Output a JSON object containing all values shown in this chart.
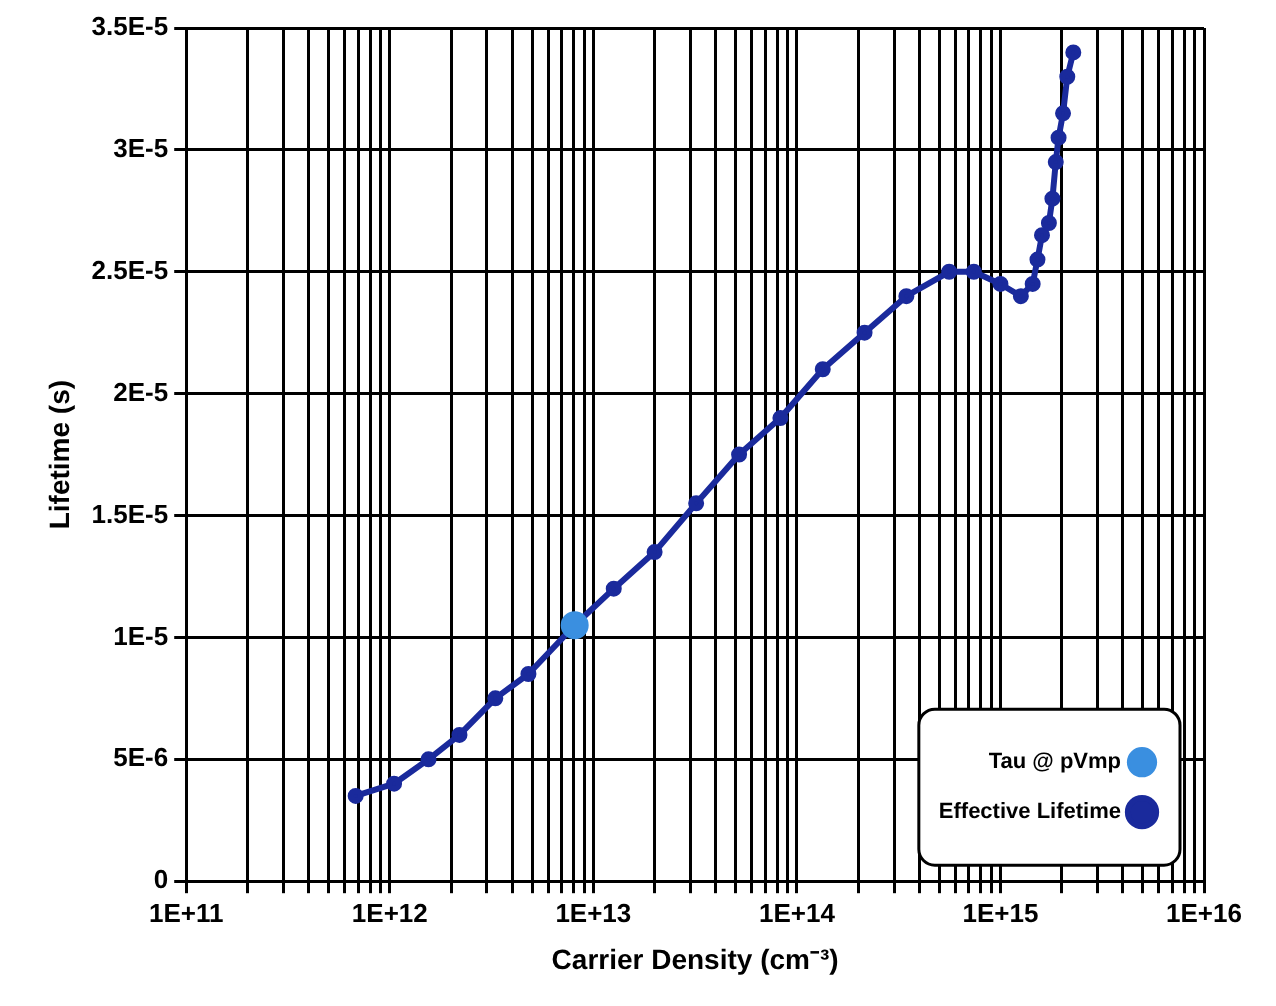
{
  "chart_data": {
    "type": "line",
    "xlabel": "Carrier Density (cm⁻³)",
    "ylabel": "Lifetime (s)",
    "log": "x",
    "grid": true,
    "legend": "bottom right",
    "marker": "circle",
    "xlim": [
      100000000000.0,
      1e+16
    ],
    "ylim": [
      0,
      3.5e-05
    ],
    "xticks": [
      {
        "value": 100000000000.0,
        "label": "1E+11"
      },
      {
        "value": 200000000000.0,
        "label": null
      },
      {
        "value": 300000000000.0,
        "label": null
      },
      {
        "value": 400000000000.0,
        "label": null
      },
      {
        "value": 500000000000.0,
        "label": null
      },
      {
        "value": 600000000000.0,
        "label": null
      },
      {
        "value": 700000000000.0,
        "label": null
      },
      {
        "value": 800000000000.0,
        "label": null
      },
      {
        "value": 900000000000.0,
        "label": null
      },
      {
        "value": 1000000000000.0,
        "label": "1E+12"
      },
      {
        "value": 2000000000000.0,
        "label": null
      },
      {
        "value": 3000000000000.0,
        "label": null
      },
      {
        "value": 4000000000000.0,
        "label": null
      },
      {
        "value": 5000000000000.0,
        "label": null
      },
      {
        "value": 6000000000000.0,
        "label": null
      },
      {
        "value": 7000000000000.0,
        "label": null
      },
      {
        "value": 8000000000000.0,
        "label": null
      },
      {
        "value": 9000000000000.0,
        "label": null
      },
      {
        "value": 10000000000000.0,
        "label": "1E+13"
      },
      {
        "value": 20000000000000.0,
        "label": null
      },
      {
        "value": 30000000000000.0,
        "label": null
      },
      {
        "value": 40000000000000.0,
        "label": null
      },
      {
        "value": 50000000000000.0,
        "label": null
      },
      {
        "value": 60000000000000.0,
        "label": null
      },
      {
        "value": 70000000000000.0,
        "label": null
      },
      {
        "value": 80000000000000.0,
        "label": null
      },
      {
        "value": 90000000000000.0,
        "label": null
      },
      {
        "value": 100000000000000.0,
        "label": "1E+14"
      },
      {
        "value": 200000000000000.0,
        "label": null
      },
      {
        "value": 300000000000000.0,
        "label": null
      },
      {
        "value": 400000000000000.0,
        "label": null
      },
      {
        "value": 500000000000000.0,
        "label": null
      },
      {
        "value": 600000000000000.0,
        "label": null
      },
      {
        "value": 700000000000000.0,
        "label": null
      },
      {
        "value": 800000000000000.0,
        "label": null
      },
      {
        "value": 900000000000000.0,
        "label": null
      },
      {
        "value": 1000000000000000.0,
        "label": "1E+15"
      },
      {
        "value": 2000000000000000.0,
        "label": null
      },
      {
        "value": 3000000000000000.0,
        "label": null
      },
      {
        "value": 4000000000000000.0,
        "label": null
      },
      {
        "value": 5000000000000000.0,
        "label": null
      },
      {
        "value": 6000000000000000.0,
        "label": null
      },
      {
        "value": 7000000000000000.0,
        "label": null
      },
      {
        "value": 8000000000000000.0,
        "label": null
      },
      {
        "value": 9000000000000000.0,
        "label": null
      },
      {
        "value": 1e+16,
        "label": "1E+16"
      }
    ],
    "yticks": [
      {
        "value": 0,
        "label": "0"
      },
      {
        "value": 5e-06,
        "label": "5E-6"
      },
      {
        "value": 1e-05,
        "label": "1E-5"
      },
      {
        "value": 1.5e-05,
        "label": "1.5E-5"
      },
      {
        "value": 2e-05,
        "label": "2E-5"
      },
      {
        "value": 2.5e-05,
        "label": "2.5E-5"
      },
      {
        "value": 3e-05,
        "label": "3E-5"
      },
      {
        "value": 3.5e-05,
        "label": "3.5E-5"
      }
    ],
    "series": [
      {
        "name": "Tau @ pVmp",
        "type": "scatter",
        "color": "#3a8fe0",
        "x": [
          8100000000000.0
        ],
        "values": [
          1.05e-05
        ]
      },
      {
        "name": "Effective Lifetime",
        "color": "#1a2a9c",
        "x": [
          680000000000.0,
          1050000000000.0,
          1550000000000.0,
          2200000000000.0,
          3300000000000.0,
          4800000000000.0,
          8100000000000.0,
          12600000000000.0,
          20000000000000.0,
          32000000000000.0,
          52000000000000.0,
          83000000000000.0,
          134000000000000.0,
          215000000000000.0,
          345000000000000.0,
          560000000000000.0,
          740000000000000.0,
          1000000000000000.0,
          1260000000000000.0,
          1440000000000000.0,
          1520000000000000.0,
          1600000000000000.0,
          1730000000000000.0,
          1800000000000000.0,
          1870000000000000.0,
          1930000000000000.0,
          2030000000000000.0,
          2130000000000000.0,
          2280000000000000.0
        ],
        "values": [
          3.5e-06,
          4e-06,
          5e-06,
          6e-06,
          7.5e-06,
          8.5e-06,
          1.05e-05,
          1.2e-05,
          1.35e-05,
          1.55e-05,
          1.75e-05,
          1.9e-05,
          2.1e-05,
          2.25e-05,
          2.4e-05,
          2.5e-05,
          2.5e-05,
          2.45e-05,
          2.4e-05,
          2.45e-05,
          2.55e-05,
          2.65e-05,
          2.7e-05,
          2.8e-05,
          2.95e-05,
          3.05e-05,
          3.15e-05,
          3.3e-05,
          3.4e-05
        ]
      }
    ]
  }
}
